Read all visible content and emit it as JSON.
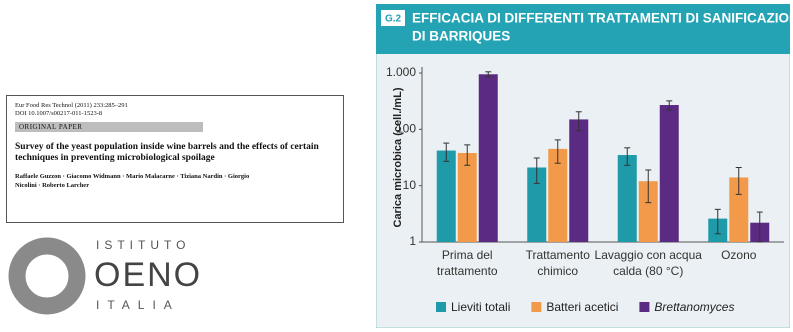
{
  "paper": {
    "journal": "Eur Food Res Technol (2011) 233:285–291",
    "doi": "DOI 10.1007/s00217-011-1523-8",
    "section": "ORIGINAL PAPER",
    "title": "Survey of the yeast population inside wine barrels and the effects of certain techniques in preventing microbiological spoilage",
    "authors": "Raffaele Guzzon · Giacomo Widmann · Mario Malacarne · Tiziana Nardin · Giorgio Nicolini · Roberto Larcher"
  },
  "logo": {
    "line1": "ISTITUTO",
    "line2": "OENO",
    "line3": "ITALIA"
  },
  "chart_data": {
    "type": "bar",
    "badge": "G.2",
    "title": [
      "EFFICACIA DI DIFFERENTI TRATTAMENTI DI SANIFICAZIONE",
      "DI BARRIQUES"
    ],
    "y_label": "Carica microbica (cell./mL)",
    "categories": [
      [
        "Prima del",
        "trattamento"
      ],
      [
        "Trattamento",
        "chimico"
      ],
      [
        "Lavaggio con acqua",
        "calda (80 °C)"
      ],
      [
        "Ozono"
      ]
    ],
    "log_scale": true,
    "ylim": [
      1,
      1000
    ],
    "yticks": [
      1,
      10,
      100,
      {
        "value": 1000,
        "label": "1.000"
      }
    ],
    "series": [
      {
        "name": "Lieviti totali",
        "color": "#1e9aa8",
        "values": [
          42,
          21,
          35,
          2.6
        ],
        "errors": [
          15,
          10,
          12,
          1.2
        ]
      },
      {
        "name": "Batteri acetici",
        "color": "#f39a4a",
        "values": [
          38,
          45,
          12,
          14
        ],
        "errors": [
          15,
          20,
          7,
          7
        ]
      },
      {
        "name": "Brettanomyces",
        "color": "#5b2a83",
        "values": [
          950,
          150,
          270,
          2.2
        ],
        "errors": [
          100,
          55,
          50,
          1.2
        ],
        "italic": true
      }
    ]
  }
}
